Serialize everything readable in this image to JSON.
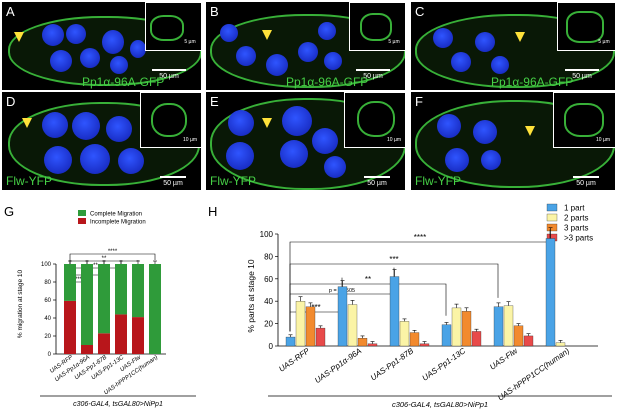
{
  "panels": [
    {
      "letter": "A",
      "stain": "Pp1α-96A-GFP",
      "scale": "50 µm",
      "inset_scale": "5 µm"
    },
    {
      "letter": "B",
      "stain": "Pp1α-96A-GFP",
      "scale": "50 µm",
      "inset_scale": "5 µm"
    },
    {
      "letter": "C",
      "stain": "Pp1α-96A-GFP",
      "scale": "50 µm",
      "inset_scale": "5 µm"
    },
    {
      "letter": "D",
      "stain": "Flw-YFP",
      "scale": "50 µm",
      "inset_scale": "10 µm"
    },
    {
      "letter": "E",
      "stain": "Flw-YFP",
      "scale": "50 µm",
      "inset_scale": "10 µm"
    },
    {
      "letter": "F",
      "stain": "Flw-YFP",
      "scale": "50 µm",
      "inset_scale": "10 µm"
    }
  ],
  "colors": {
    "gfp_text": "#46d046",
    "nuclei": "#2140e8",
    "membrane": "#38b038",
    "arrowhead": "#ffe23a"
  },
  "chart_G": {
    "letter": "G",
    "ylabel": "% migration at stage 10",
    "footer": "c306-GAL4, tsGAL80>NiPp1",
    "legend": [
      "Complete Migration",
      "Incomplete Migration"
    ],
    "sig": [
      "***",
      "*",
      "**",
      "**",
      "****"
    ]
  },
  "chart_H": {
    "letter": "H",
    "ylabel": "% parts at stage 10",
    "footer": "c306-GAL4, tsGAL80>NiPp1",
    "sig": [
      "***",
      "p = 0.0505",
      "**",
      "***",
      "****"
    ]
  },
  "chart_data": [
    {
      "type": "bar",
      "stacked": true,
      "categories": [
        "UAS-RFP",
        "UAS-Pp1α-96A",
        "UAS-Pp1-87B",
        "UAS-Pp1-13C",
        "UAS-Flw",
        "UAS-hPPP1CC(human)"
      ],
      "series": [
        {
          "name": "Incomplete Migration",
          "color": "#b8161b",
          "values": [
            59,
            10,
            23,
            44,
            41,
            0
          ]
        },
        {
          "name": "Complete Migration",
          "color": "#2f9b3a",
          "values": [
            41,
            90,
            77,
            56,
            59,
            100
          ]
        }
      ],
      "ylim": [
        0,
        100
      ],
      "yticks": [
        0,
        20,
        40,
        60,
        80,
        100
      ],
      "ylabel": "% migration at stage 10",
      "grid": false,
      "legend_position": "top"
    },
    {
      "type": "bar",
      "categories": [
        "UAS-RFP",
        "UAS-Pp1α-96A",
        "UAS-Pp1-87B",
        "UAS-Pp1-13C",
        "UAS-Flw",
        "UAS-hPPP1CC(human)"
      ],
      "series": [
        {
          "name": "1 part",
          "color": "#4aa3e6",
          "values": [
            8,
            53,
            62,
            19,
            35,
            96
          ]
        },
        {
          "name": "2 parts",
          "color": "#fbf4a6",
          "values": [
            40,
            37,
            22,
            34,
            36,
            3
          ]
        },
        {
          "name": "3 parts",
          "color": "#f28a2e",
          "values": [
            35,
            7,
            12,
            31,
            18,
            0
          ]
        },
        {
          "name": ">3 parts",
          "color": "#e84a4a",
          "values": [
            16,
            2,
            2,
            13,
            9,
            0
          ]
        }
      ],
      "ylim": [
        0,
        100
      ],
      "yticks": [
        0,
        20,
        40,
        60,
        80,
        100
      ],
      "ylabel": "% parts at stage 10",
      "grid": false,
      "legend_position": "top-right"
    }
  ]
}
